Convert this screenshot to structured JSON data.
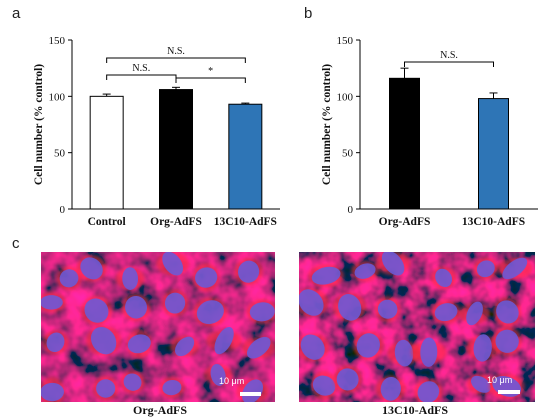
{
  "panels": {
    "a": "a",
    "b": "b",
    "c": "c"
  },
  "chart_data": [
    {
      "type": "bar",
      "panel": "a",
      "categories": [
        "Control",
        "Org-AdFS",
        "13C10-AdFS"
      ],
      "values": [
        100,
        106,
        93
      ],
      "errors": [
        2,
        2,
        1
      ],
      "colors": [
        "#ffffff",
        "#000000",
        "#2e75b6"
      ],
      "ylabel": "Cell number (% control)",
      "ylim": [
        0,
        150
      ],
      "yticks": [
        0,
        50,
        100,
        150
      ],
      "significance": [
        {
          "from": 0,
          "to": 1,
          "label": "N.S."
        },
        {
          "from": 1,
          "to": 2,
          "label": "*"
        },
        {
          "from": 0,
          "to": 2,
          "label": "N.S."
        }
      ]
    },
    {
      "type": "bar",
      "panel": "b",
      "categories": [
        "Org-AdFS",
        "13C10-AdFS"
      ],
      "values": [
        116,
        98
      ],
      "errors": [
        9,
        5
      ],
      "colors": [
        "#000000",
        "#2e75b6"
      ],
      "ylabel": "Cell number (% control)",
      "ylim": [
        0,
        150
      ],
      "yticks": [
        0,
        50,
        100,
        150
      ],
      "significance": [
        {
          "from": 0,
          "to": 1,
          "label": "N.S."
        }
      ]
    }
  ],
  "micrographs": [
    {
      "label": "Org-AdFS",
      "scale_bar": "10 μm"
    },
    {
      "label": "13C10-AdFS",
      "scale_bar": "10 μm"
    }
  ]
}
